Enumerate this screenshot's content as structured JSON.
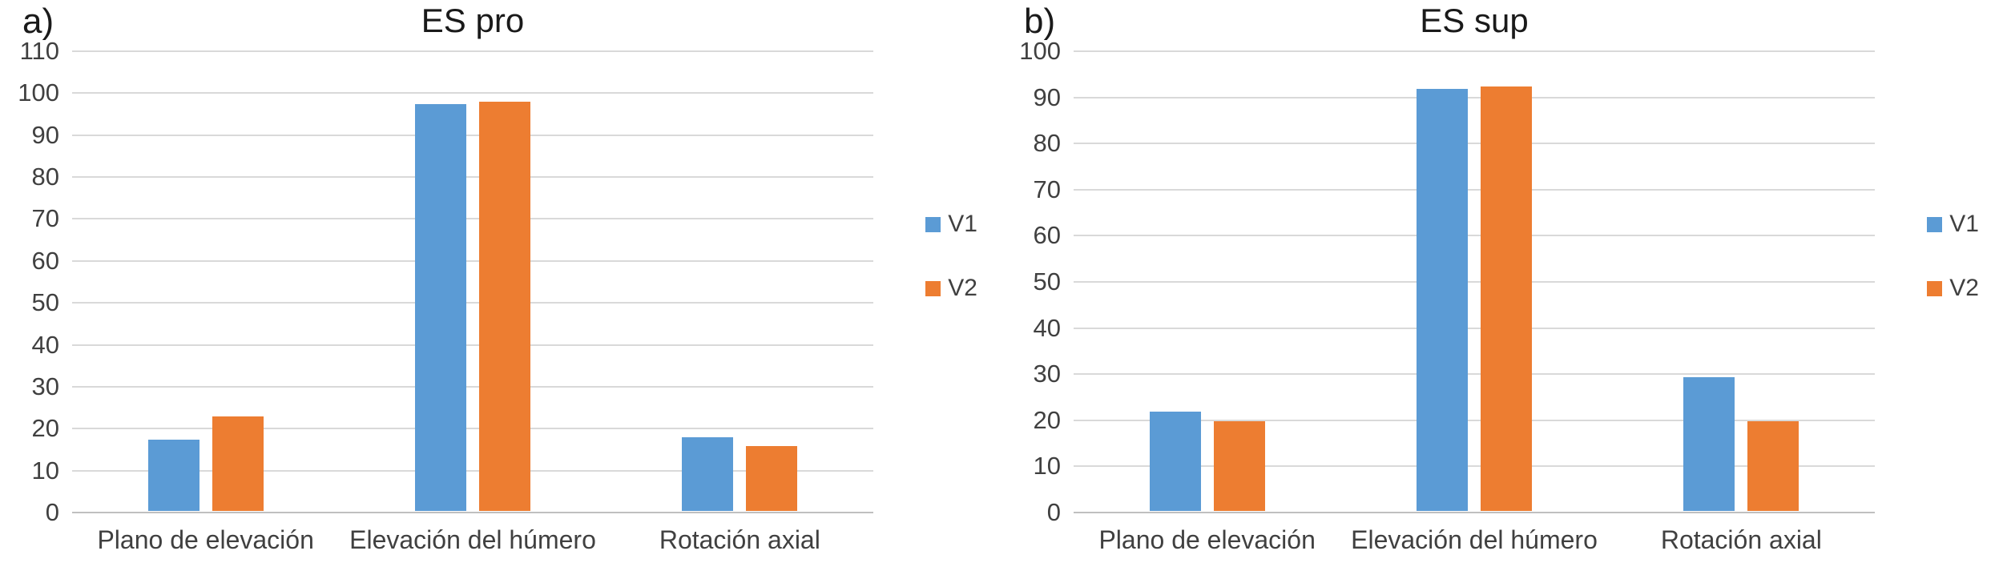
{
  "chart_data": [
    {
      "type": "bar",
      "panel_label": "a)",
      "title": "ES pro",
      "categories": [
        "Plano de elevación",
        "Elevación del húmero",
        "Rotación axial"
      ],
      "series": [
        {
          "name": "V1",
          "color": "#5B9BD5",
          "values": [
            17,
            97,
            17.5
          ]
        },
        {
          "name": "V2",
          "color": "#ED7D31",
          "values": [
            22.5,
            97.5,
            15.5
          ]
        }
      ],
      "xlabel": "",
      "ylabel": "",
      "ylim": [
        0,
        110
      ],
      "ytick_step": 10,
      "grid": true,
      "legend_position": "right"
    },
    {
      "type": "bar",
      "panel_label": "b)",
      "title": "ES sup",
      "categories": [
        "Plano de elevación",
        "Elevación del húmero",
        "Rotación axial"
      ],
      "series": [
        {
          "name": "V1",
          "color": "#5B9BD5",
          "values": [
            21.5,
            91.5,
            29
          ]
        },
        {
          "name": "V2",
          "color": "#ED7D31",
          "values": [
            19.5,
            92,
            19.5
          ]
        }
      ],
      "xlabel": "",
      "ylabel": "",
      "ylim": [
        0,
        100
      ],
      "ytick_step": 10,
      "grid": true,
      "legend_position": "right"
    }
  ]
}
